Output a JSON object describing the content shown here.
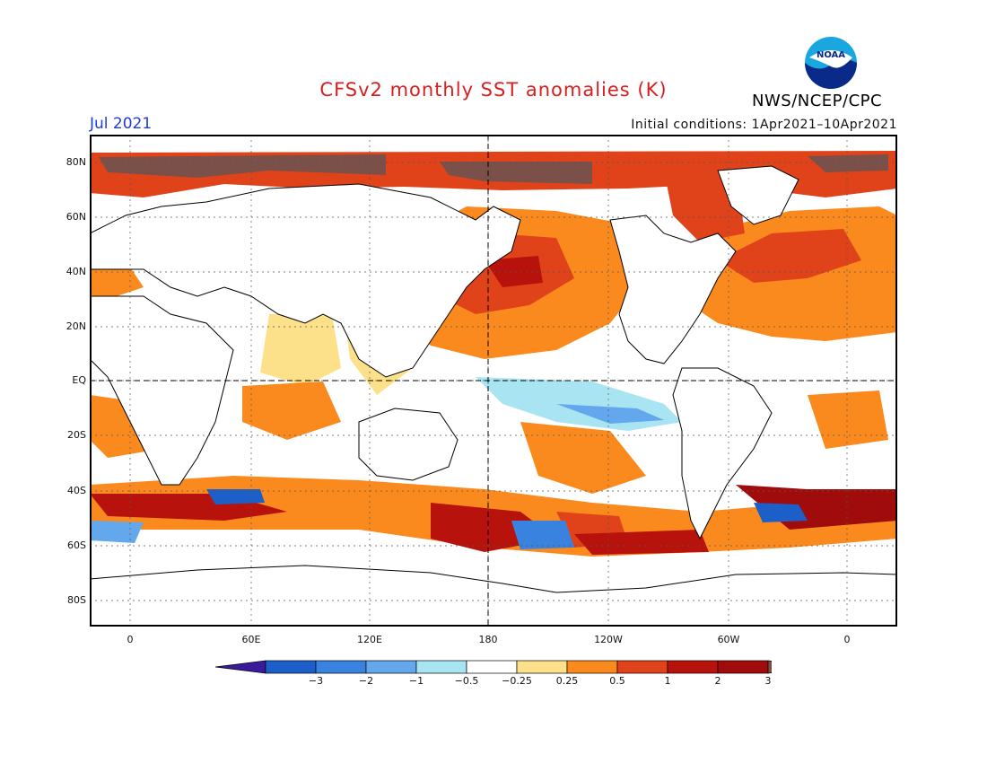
{
  "header": {
    "title": "CFSv2 monthly SST anomalies (K)",
    "org": "NWS/NCEP/CPC",
    "logo_text": "NOAA",
    "month": "Jul 2021",
    "initial_conditions": "Initial conditions: 1Apr2021–10Apr2021"
  },
  "map": {
    "lat_ticks": [
      "80N",
      "60N",
      "40N",
      "20N",
      "EQ",
      "20S",
      "40S",
      "60S",
      "80S"
    ],
    "lon_ticks": [
      "0",
      "60E",
      "120E",
      "180",
      "120W",
      "60W",
      "0"
    ],
    "ocean_color": "#ffffff",
    "gridlines": "dotted",
    "zero_lines": "dashed (equator and 180)"
  },
  "colorbar": {
    "labels": [
      "−3",
      "−2",
      "−1",
      "−0.5",
      "−0.25",
      "0.25",
      "0.5",
      "1",
      "2",
      "3"
    ],
    "colors": [
      "#3b1a9c",
      "#1d5fc8",
      "#3a82e0",
      "#63a8ec",
      "#a9e4f2",
      "#ffffff",
      "#fce08a",
      "#fb8a1e",
      "#e0431a",
      "#b8120d",
      "#a00c0c",
      "#7b5048"
    ]
  }
}
